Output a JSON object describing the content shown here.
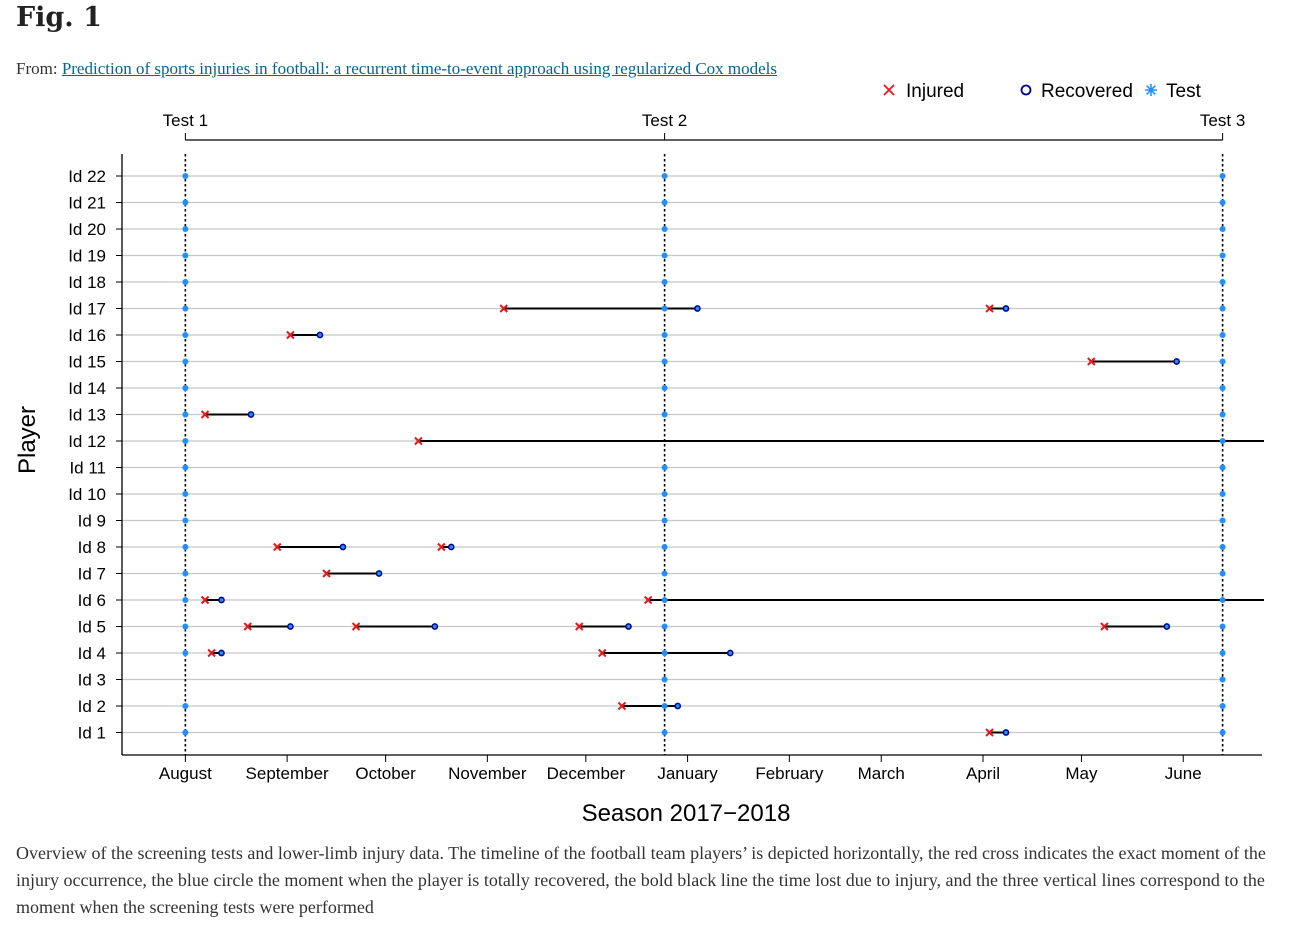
{
  "figure": {
    "label": "Fig. 1",
    "from_prefix": "From:",
    "source_link": "Prediction of sports injuries in football: a recurrent time-to-event approach using regularized Cox models",
    "caption": "Overview of the screening tests and lower-limb injury data. The timeline of the football team players’ is depicted horizontally, the red cross indicates the exact moment of the injury occurrence, the blue circle the moment when the player is totally recovered, the bold black line the time lost due to injury, and the three vertical lines correspond to the moment when the screening tests were performed"
  },
  "chart_data": {
    "type": "scatter",
    "xlabel": "Season 2017−2018",
    "ylabel": "Player",
    "x_ticks": [
      "August",
      "September",
      "October",
      "November",
      "December",
      "January",
      "February",
      "March",
      "April",
      "May",
      "June"
    ],
    "x_tick_dates": [
      "2017-08-01",
      "2017-09-01",
      "2017-10-01",
      "2017-11-01",
      "2017-12-01",
      "2018-01-01",
      "2018-02-01",
      "2018-03-01",
      "2018-04-01",
      "2018-05-01",
      "2018-06-01"
    ],
    "xlim": [
      "2017-07-13",
      "2018-06-25"
    ],
    "players": [
      "Id 1",
      "Id 2",
      "Id 3",
      "Id 4",
      "Id 5",
      "Id 6",
      "Id 7",
      "Id 8",
      "Id 9",
      "Id 10",
      "Id 11",
      "Id 12",
      "Id 13",
      "Id 14",
      "Id 15",
      "Id 16",
      "Id 17",
      "Id 18",
      "Id 19",
      "Id 20",
      "Id 21",
      "Id 22"
    ],
    "legend": [
      {
        "label": "Injured",
        "marker": "×",
        "color": "#e31a1c"
      },
      {
        "label": "Recovered",
        "marker": "o",
        "color": "#00008b"
      },
      {
        "label": "Test",
        "marker": "✳",
        "color": "#1e90ff"
      }
    ],
    "legend_position": "top-right",
    "tests": [
      {
        "label": "Test 1",
        "date": "2017-08-01"
      },
      {
        "label": "Test 2",
        "date": "2017-12-25"
      },
      {
        "label": "Test 3",
        "date": "2018-06-13"
      }
    ],
    "injuries": [
      {
        "player": "Id 17",
        "injured": "2017-11-06",
        "recovered": "2018-01-04"
      },
      {
        "player": "Id 17",
        "injured": "2018-04-03",
        "recovered": "2018-04-08"
      },
      {
        "player": "Id 16",
        "injured": "2017-09-02",
        "recovered": "2017-09-11"
      },
      {
        "player": "Id 15",
        "injured": "2018-05-04",
        "recovered": "2018-05-30"
      },
      {
        "player": "Id 13",
        "injured": "2017-08-07",
        "recovered": "2017-08-21"
      },
      {
        "player": "Id 12",
        "injured": "2017-10-11",
        "recovered": "2018-06-30"
      },
      {
        "player": "Id 8",
        "injured": "2017-08-29",
        "recovered": "2017-09-18"
      },
      {
        "player": "Id 8",
        "injured": "2017-10-18",
        "recovered": "2017-10-21"
      },
      {
        "player": "Id 7",
        "injured": "2017-09-13",
        "recovered": "2017-09-29"
      },
      {
        "player": "Id 6",
        "injured": "2017-08-07",
        "recovered": "2017-08-12"
      },
      {
        "player": "Id 6",
        "injured": "2017-12-20",
        "recovered": "2018-06-30"
      },
      {
        "player": "Id 5",
        "injured": "2017-08-20",
        "recovered": "2017-09-02"
      },
      {
        "player": "Id 5",
        "injured": "2017-09-22",
        "recovered": "2017-10-16"
      },
      {
        "player": "Id 5",
        "injured": "2017-11-29",
        "recovered": "2017-12-14"
      },
      {
        "player": "Id 5",
        "injured": "2018-05-08",
        "recovered": "2018-05-27"
      },
      {
        "player": "Id 4",
        "injured": "2017-08-09",
        "recovered": "2017-08-12"
      },
      {
        "player": "Id 4",
        "injured": "2017-12-06",
        "recovered": "2018-01-14"
      },
      {
        "player": "Id 2",
        "injured": "2017-12-12",
        "recovered": "2017-12-29"
      },
      {
        "player": "Id 1",
        "injured": "2018-04-03",
        "recovered": "2018-04-08"
      }
    ],
    "missing_test_markers": [
      {
        "player": "Id 3",
        "test": "Test 1"
      },
      {
        "player": "Id 12",
        "test": "Test 2"
      }
    ],
    "grid": "horizontal"
  }
}
